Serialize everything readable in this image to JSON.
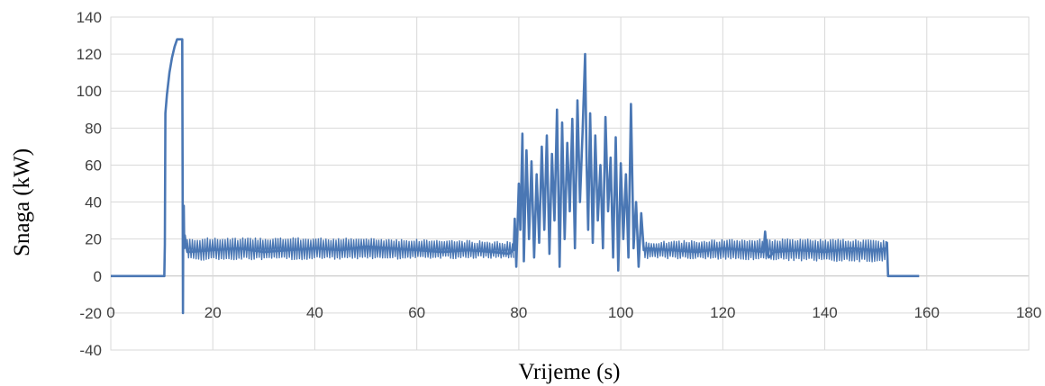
{
  "chart_data": {
    "type": "line",
    "title": "",
    "xlabel": "Vrijeme (s)",
    "ylabel": "Snaga (kW)",
    "xlim": [
      0,
      180
    ],
    "ylim": [
      -40,
      140
    ],
    "x_ticks": [
      0,
      20,
      40,
      60,
      80,
      100,
      120,
      140,
      160,
      180
    ],
    "y_ticks": [
      -40,
      -20,
      0,
      20,
      40,
      60,
      80,
      100,
      120,
      140
    ],
    "x_tick_labels": [
      "0",
      "20",
      "40",
      "60",
      "80",
      "100",
      "120",
      "140",
      "160",
      "180"
    ],
    "y_tick_labels": [
      "-40",
      "-20",
      "0",
      "20",
      "40",
      "60",
      "80",
      "100",
      "120",
      "140"
    ],
    "grid": true,
    "legend": "none",
    "colors": {
      "series": "#4a77b4",
      "grid": "#d9d9d9",
      "axis": "#bfbfbf"
    },
    "series": [
      {
        "x": [
          0,
          10.5,
          10.6,
          10.7,
          11.0,
          11.5,
          12.0,
          12.5,
          13.0,
          13.5,
          14.0,
          14.1,
          14.15,
          14.2,
          14.3,
          14.4,
          14.5,
          14.7,
          15,
          20,
          25,
          30,
          35,
          40,
          45,
          50,
          55,
          60,
          65,
          70,
          75,
          78,
          79,
          79.2,
          79.5,
          80,
          80.3,
          80.7,
          81,
          81.5,
          82,
          82.5,
          83,
          83.5,
          84,
          84.5,
          85,
          85.5,
          86,
          86.5,
          87,
          87.5,
          88,
          88.5,
          89,
          89.5,
          90,
          90.5,
          91,
          91.5,
          92,
          92.5,
          93,
          93.3,
          93.6,
          94,
          94.5,
          95,
          95.5,
          96,
          96.5,
          97,
          97.5,
          98,
          98.5,
          99,
          99.5,
          100,
          100.5,
          101,
          101.5,
          102,
          102.5,
          103,
          103.5,
          104,
          104.5,
          105,
          110,
          115,
          120,
          125,
          128,
          128.3,
          128.6,
          129,
          130,
          135,
          140,
          145,
          150,
          152,
          152.2,
          152.4,
          153,
          158.5
        ],
        "y": [
          0,
          0,
          17,
          88,
          98,
          110,
          118,
          124,
          128,
          128,
          128,
          40,
          -20,
          25,
          38,
          15,
          22,
          18,
          13,
          14,
          15,
          13,
          14,
          15,
          14,
          16,
          15,
          14,
          13,
          14,
          13,
          12,
          14,
          31,
          5,
          50,
          25,
          77,
          8,
          68,
          20,
          62,
          10,
          55,
          18,
          70,
          25,
          76,
          12,
          66,
          30,
          90,
          5,
          83,
          20,
          72,
          35,
          85,
          15,
          95,
          40,
          78,
          120,
          60,
          25,
          88,
          18,
          76,
          30,
          60,
          15,
          86,
          35,
          64,
          10,
          75,
          3,
          61,
          20,
          55,
          10,
          93,
          15,
          40,
          5,
          34,
          14,
          15,
          14,
          13,
          15,
          14,
          13,
          24,
          14,
          10,
          13,
          14,
          13,
          15,
          14,
          15,
          18,
          0,
          0,
          0
        ]
      }
    ]
  }
}
